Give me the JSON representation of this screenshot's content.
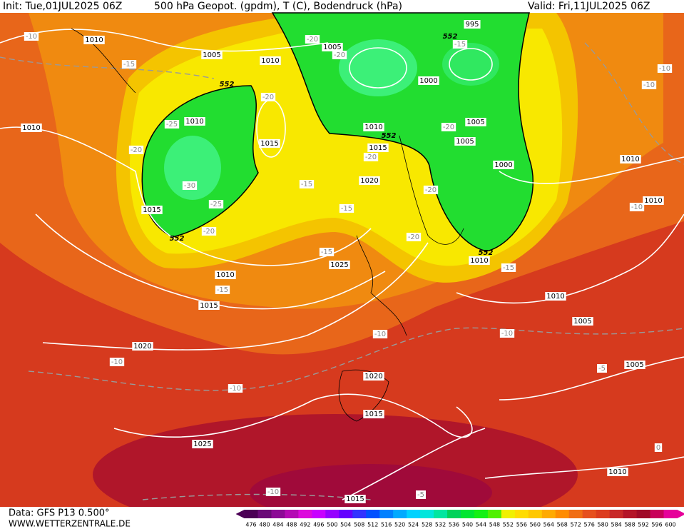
{
  "header": {
    "init": "Init: Tue,01JUL2025 06Z",
    "title": "500 hPa Geopot. (gpdm), T (C), Bodendruck (hPa)",
    "valid": "Valid: Fri,11JUL2025 06Z"
  },
  "footer": {
    "data": "Data: GFS P13 0.500°",
    "site": "WWW.WETTERZENTRALE.DE"
  },
  "labels": {
    "pressure": [
      "1010",
      "1005",
      "1010",
      "1005",
      "995",
      "1000",
      "1010",
      "1010",
      "1015",
      "1010",
      "1005",
      "1005",
      "1015",
      "1000",
      "1020",
      "1010",
      "1010",
      "1015",
      "1010",
      "1025",
      "1010",
      "1015",
      "1010",
      "1005",
      "1020",
      "1020",
      "1005",
      "1015",
      "1025",
      "1010",
      "1015"
    ],
    "temperature": [
      "-10",
      "-15",
      "-20",
      "-20",
      "-15",
      "-10",
      "-10",
      "-20",
      "-25",
      "-20",
      "-20",
      "-20",
      "-15",
      "-30",
      "-25",
      "-15",
      "-20",
      "-10",
      "-20",
      "-20",
      "-15",
      "-15",
      "-15",
      "-10",
      "-10",
      "-10",
      "-5",
      "-10",
      "0",
      "-10",
      "-5"
    ],
    "height": [
      "552",
      "552",
      "552",
      "552",
      "552"
    ]
  },
  "legend": {
    "values": [
      476,
      480,
      484,
      488,
      492,
      496,
      500,
      504,
      508,
      512,
      516,
      520,
      524,
      528,
      532,
      536,
      540,
      544,
      548,
      552,
      556,
      560,
      564,
      568,
      572,
      576,
      580,
      584,
      588,
      592,
      596,
      600
    ],
    "colors": [
      "#4b0055",
      "#6a0a78",
      "#8c0a96",
      "#b40ab4",
      "#dc0adc",
      "#c800ff",
      "#9600ff",
      "#6400ff",
      "#3232ff",
      "#0050ff",
      "#0080ff",
      "#00aaff",
      "#00d2ff",
      "#00e6dc",
      "#00e6a0",
      "#00d25a",
      "#00e632",
      "#14f014",
      "#50f000",
      "#f0f000",
      "#ffdc00",
      "#ffc800",
      "#ffaa00",
      "#ff8c00",
      "#f06e14",
      "#e6501e",
      "#dc3c1e",
      "#c82828",
      "#b41428",
      "#a00a28",
      "#c8005a",
      "#e6009a"
    ]
  }
}
